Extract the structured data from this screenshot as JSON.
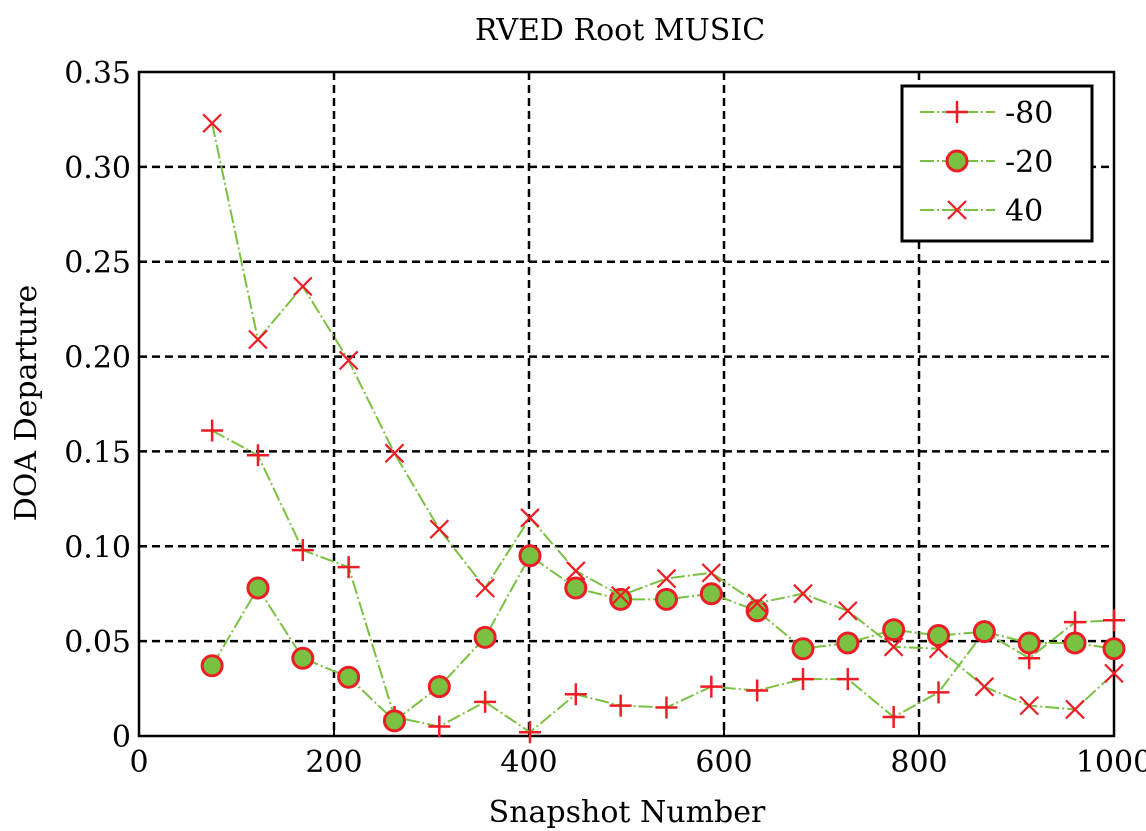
{
  "chart_data": {
    "type": "line",
    "title": "RVED Root MUSIC",
    "xlabel": "Snapshot Number",
    "ylabel": "DOA Departure",
    "xlim": [
      0,
      1000
    ],
    "ylim": [
      0,
      0.35
    ],
    "x_ticks": [
      0,
      200,
      400,
      600,
      800,
      1000
    ],
    "x_tick_labels": [
      "0",
      "200",
      "400",
      "600",
      "800",
      "1000"
    ],
    "y_ticks": [
      0,
      0.05,
      0.1,
      0.15,
      0.2,
      0.25,
      0.3,
      0.35
    ],
    "y_tick_labels": [
      "0",
      "0.05",
      "0.10",
      "0.15",
      "0.20",
      "0.25",
      "0.30",
      "0.35"
    ],
    "grid": true,
    "legend_position": "top-right",
    "x": [
      75,
      122,
      168,
      215,
      262,
      308,
      355,
      401,
      448,
      494,
      541,
      587,
      634,
      681,
      727,
      774,
      820,
      867,
      913,
      960,
      1000
    ],
    "series": [
      {
        "name": "-80",
        "marker": "plus",
        "line_color": "#7ac142",
        "marker_color": "#ee1c24",
        "values": [
          0.161,
          0.148,
          0.098,
          0.089,
          0.01,
          0.005,
          0.018,
          0.002,
          0.022,
          0.016,
          0.015,
          0.026,
          0.024,
          0.03,
          0.03,
          0.01,
          0.023,
          0.055,
          0.041,
          0.06,
          0.061
        ]
      },
      {
        "name": "-20",
        "marker": "circle",
        "line_color": "#7ac142",
        "marker_color": "#7ac142",
        "marker_edge": "#ee1c24",
        "values": [
          0.037,
          0.078,
          0.041,
          0.031,
          0.008,
          0.026,
          0.052,
          0.095,
          0.078,
          0.072,
          0.072,
          0.075,
          0.066,
          0.046,
          0.049,
          0.056,
          0.053,
          0.055,
          0.049,
          0.049,
          0.046
        ]
      },
      {
        "name": "40",
        "marker": "x",
        "line_color": "#7ac142",
        "marker_color": "#ee1c24",
        "values": [
          0.323,
          0.209,
          0.237,
          0.198,
          0.149,
          0.109,
          0.078,
          0.115,
          0.087,
          0.074,
          0.083,
          0.086,
          0.07,
          0.075,
          0.066,
          0.047,
          0.046,
          0.026,
          0.016,
          0.014,
          0.033
        ]
      }
    ]
  }
}
